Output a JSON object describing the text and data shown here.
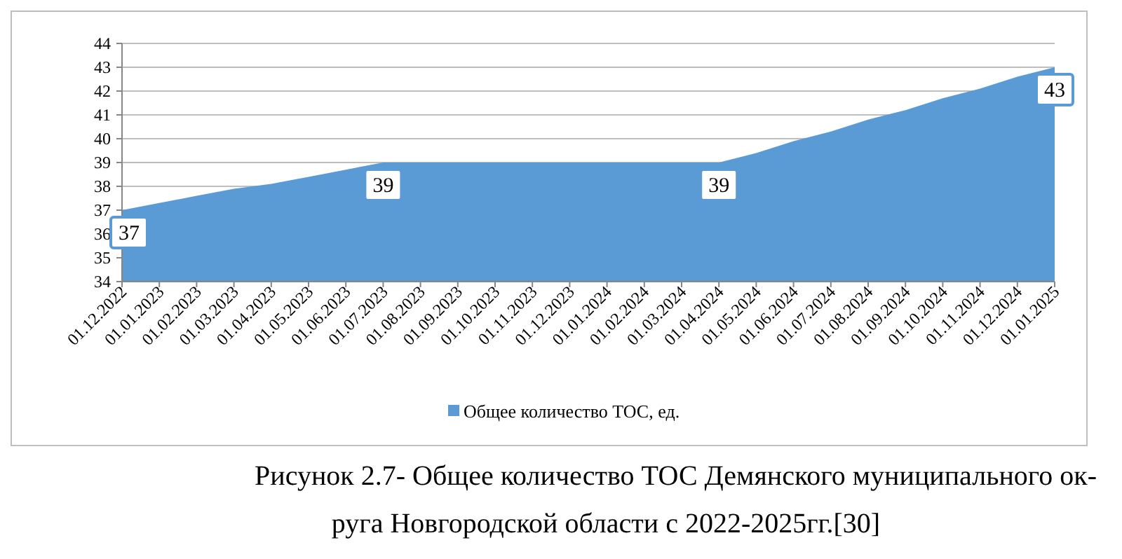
{
  "chart_data": {
    "type": "area",
    "categories": [
      "01.12.2022",
      "01.01.2023",
      "01.02.2023",
      "01.03.2023",
      "01.04.2023",
      "01.05.2023",
      "01.06.2023",
      "01.07.2023",
      "01.08.2023",
      "01.09.2023",
      "01.10.2023",
      "01.11.2023",
      "01.12.2023",
      "01.01.2024",
      "01.02.2024",
      "01.03.2024",
      "01.04.2024",
      "01.05.2024",
      "01.06.2024",
      "01.07.2024",
      "01.08.2024",
      "01.09.2024",
      "01.10.2024",
      "01.11.2024",
      "01.12.2024",
      "01.01.2025"
    ],
    "series": [
      {
        "name": "Общее количество ТОС, ед.",
        "color": "#5b9bd5",
        "values": [
          37,
          37.3,
          37.6,
          37.9,
          38.1,
          38.4,
          38.7,
          39,
          39,
          39,
          39,
          39,
          39,
          39,
          39,
          39,
          39,
          39.4,
          39.9,
          40.3,
          40.8,
          41.2,
          41.7,
          42.1,
          42.6,
          43
        ],
        "value_labels": [
          "37",
          null,
          null,
          null,
          null,
          null,
          null,
          "39",
          null,
          null,
          null,
          null,
          null,
          null,
          null,
          null,
          "39",
          null,
          null,
          null,
          null,
          null,
          null,
          null,
          null,
          "43"
        ]
      }
    ],
    "ylim": [
      34,
      44
    ],
    "yticks": [
      34,
      35,
      36,
      37,
      38,
      39,
      40,
      41,
      42,
      43,
      44
    ],
    "grid": "y",
    "legend": "bottom",
    "annotations": [
      "Рисунок 2.7- Общее количество ТОС Демянского муниципального ок-\nруга Новгородской области с 2022-2025гг.[30]"
    ]
  }
}
